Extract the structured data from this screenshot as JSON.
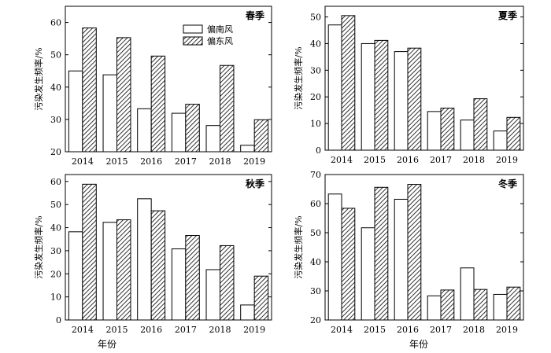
{
  "figure": {
    "xlabel": "年份",
    "legend": {
      "south": "偏南风",
      "east": "偏东风"
    }
  },
  "chart_data": [
    {
      "type": "bar",
      "title": "春季",
      "categories": [
        "2014",
        "2015",
        "2016",
        "2017",
        "2018",
        "2019"
      ],
      "series": [
        {
          "name": "偏南风",
          "pattern": "plain",
          "values": [
            45,
            43.8,
            33.3,
            31.9,
            28.1,
            22
          ]
        },
        {
          "name": "偏东风",
          "pattern": "hatched",
          "values": [
            58.3,
            55.3,
            49.6,
            34.7,
            46.7,
            29.9
          ]
        }
      ],
      "ylabel": "污染发生频率/%",
      "ylim": [
        20,
        65
      ],
      "yticks": [
        20,
        30,
        40,
        50,
        60
      ],
      "legend": "top-center"
    },
    {
      "type": "bar",
      "title": "夏季",
      "categories": [
        "2014",
        "2015",
        "2016",
        "2017",
        "2018",
        "2019"
      ],
      "series": [
        {
          "name": "偏南风",
          "pattern": "plain",
          "values": [
            47,
            40,
            37,
            14.5,
            11.3,
            7.2
          ]
        },
        {
          "name": "偏东风",
          "pattern": "hatched",
          "values": [
            50.5,
            41.2,
            38.3,
            15.8,
            19.3,
            12.3
          ]
        }
      ],
      "ylabel": "污染发生频率/%",
      "ylim": [
        0,
        54
      ],
      "yticks": [
        0,
        10,
        20,
        30,
        40,
        50
      ]
    },
    {
      "type": "bar",
      "title": "秋季",
      "categories": [
        "2014",
        "2015",
        "2016",
        "2017",
        "2018",
        "2019"
      ],
      "series": [
        {
          "name": "偏南风",
          "pattern": "plain",
          "values": [
            38.2,
            42.3,
            52.5,
            30.8,
            21.8,
            6.5
          ]
        },
        {
          "name": "偏东风",
          "pattern": "hatched",
          "values": [
            58.8,
            43.4,
            47.3,
            36.6,
            32.2,
            19
          ]
        }
      ],
      "ylabel": "污染发生频率/%",
      "ylim": [
        0,
        63
      ],
      "yticks": [
        0,
        10,
        20,
        30,
        40,
        50,
        60
      ]
    },
    {
      "type": "bar",
      "title": "冬季",
      "categories": [
        "2014",
        "2015",
        "2016",
        "2017",
        "2018",
        "2019"
      ],
      "series": [
        {
          "name": "偏南风",
          "pattern": "plain",
          "values": [
            63.3,
            51.7,
            61.5,
            28.3,
            37.9,
            28.8
          ]
        },
        {
          "name": "偏东风",
          "pattern": "hatched",
          "values": [
            58.4,
            65.6,
            66.6,
            30.3,
            30.5,
            31.3
          ]
        }
      ],
      "ylabel": "污染发生频率/%",
      "ylim": [
        20,
        70
      ],
      "yticks": [
        20,
        30,
        40,
        50,
        60,
        70
      ]
    }
  ]
}
